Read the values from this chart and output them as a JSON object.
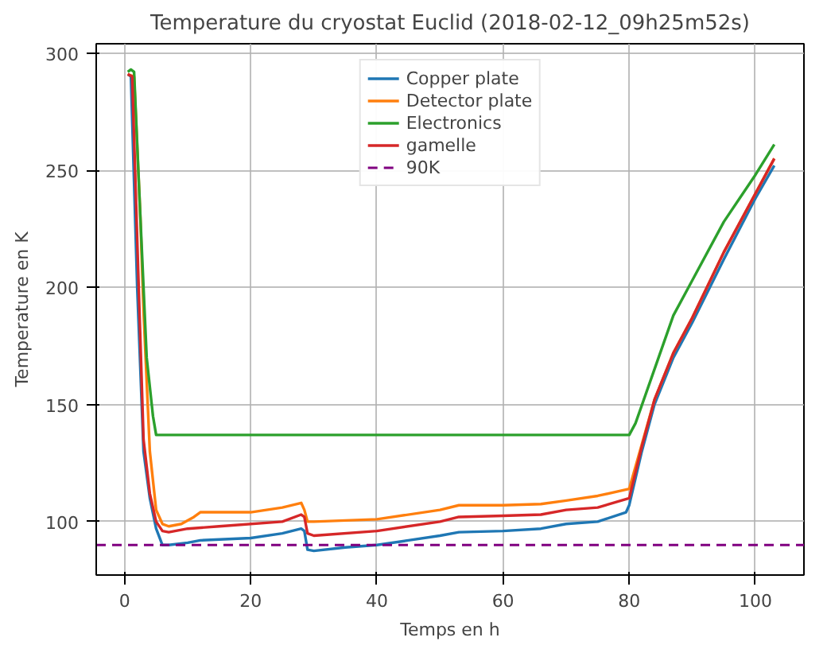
{
  "chart_data": {
    "type": "line",
    "title": "Temperature du cryostat Euclid (2018-02-12_09h25m52s)",
    "xlabel": "Temps en h",
    "ylabel": "Temperature en K",
    "xlim": [
      -4.5,
      107.7
    ],
    "ylim": [
      77.2,
      304
    ],
    "xticks": [
      0,
      20,
      40,
      60,
      80,
      100
    ],
    "yticks": [
      100,
      150,
      200,
      250,
      300
    ],
    "grid": true,
    "legend": "top",
    "line_style": "solid",
    "series": [
      {
        "name": "Copper plate",
        "color": "#1f77b4",
        "x": [
          0.5,
          1,
          2,
          3,
          4,
          5,
          6,
          7,
          10,
          12,
          20,
          25,
          28,
          28.5,
          29,
          30,
          35,
          40,
          45,
          50,
          53,
          60,
          66,
          70,
          75,
          79.5,
          80,
          82,
          84,
          87,
          90,
          95,
          100,
          103
        ],
        "values": [
          291,
          290,
          200,
          130,
          110,
          97,
          90,
          90,
          91,
          92,
          93,
          95,
          97,
          96,
          88,
          87.5,
          89,
          90,
          92,
          94,
          95.5,
          96,
          97,
          99,
          100,
          104,
          107,
          130,
          150,
          170,
          185,
          212,
          238,
          252
        ]
      },
      {
        "name": "Detector plate",
        "color": "#ff7f0e",
        "x": [
          0.5,
          1.5,
          2.5,
          3,
          4,
          5,
          6,
          7,
          9,
          11,
          12,
          20,
          25,
          28,
          28.5,
          29,
          30,
          40,
          50,
          53,
          60,
          66,
          70,
          75,
          80,
          82,
          84,
          87,
          90,
          95,
          100,
          103
        ],
        "values": [
          291,
          290,
          230,
          190,
          130,
          105,
          99,
          98,
          99,
          102,
          104,
          104,
          106,
          108,
          105,
          100,
          100,
          101,
          105,
          107,
          107,
          107.5,
          109,
          111,
          114,
          133,
          152,
          172,
          187,
          215,
          240,
          255
        ]
      },
      {
        "name": "Electronics",
        "color": "#2ca02c",
        "x": [
          0.5,
          1,
          1.5,
          2.5,
          3.5,
          4.5,
          5,
          80,
          81,
          84,
          87,
          90,
          95,
          100,
          103
        ],
        "values": [
          292,
          293,
          292,
          230,
          170,
          145,
          137,
          137,
          142,
          165,
          188,
          203,
          228,
          248,
          261
        ]
      },
      {
        "name": "gamelle",
        "color": "#d62728",
        "x": [
          0.5,
          1.2,
          2,
          3,
          4,
          5,
          6,
          7,
          10,
          15,
          25,
          28,
          28.5,
          29,
          30,
          40,
          50,
          53,
          60,
          66,
          70,
          75,
          80,
          82,
          84,
          87,
          90,
          95,
          100,
          103
        ],
        "values": [
          291,
          290,
          220,
          135,
          112,
          100,
          96,
          95.5,
          97,
          98,
          100,
          103,
          102,
          95,
          94,
          96,
          100,
          102,
          102.5,
          103,
          105,
          106,
          110,
          132,
          152,
          172,
          187,
          215,
          240,
          255
        ]
      }
    ],
    "ref_lines": [
      {
        "axis": "y",
        "value": 90,
        "label": "90K",
        "color": "#800080",
        "line_style": "dashed"
      }
    ]
  }
}
